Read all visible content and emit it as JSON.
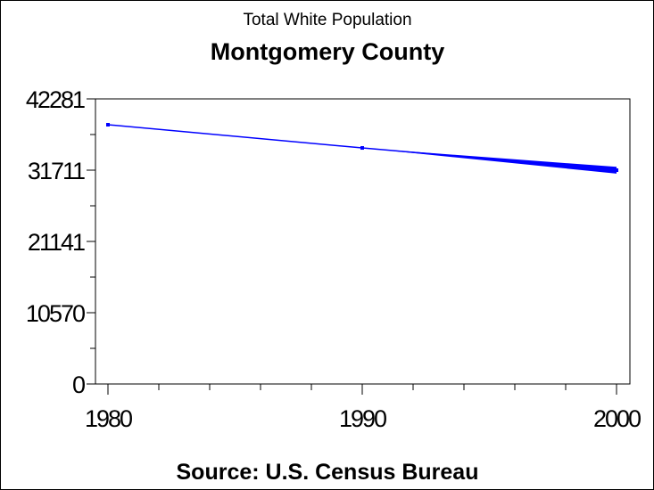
{
  "chart_data": {
    "type": "line",
    "title": "Montgomery County",
    "subtitle": "Total White Population",
    "footnote": "Source: U.S. Census Bureau",
    "xlabel": "",
    "ylabel": "",
    "x": [
      1980,
      1990,
      2000
    ],
    "series": [
      {
        "values": [
          38450,
          35010,
          31710
        ],
        "color": "#0000ff"
      }
    ],
    "end_spread_2000": [
      32200,
      31200
    ],
    "xlim": [
      1979.5,
      2000.5
    ],
    "ylim": [
      0,
      42281
    ],
    "x_ticks": [
      "1980",
      "1990",
      "2000"
    ],
    "x_minor_step": 2,
    "y_ticks": [
      "0",
      "10570",
      "21141",
      "31711",
      "42281"
    ],
    "y_tick_values": [
      0,
      10570,
      21141,
      31711,
      42281
    ],
    "grid": false,
    "legend": "none"
  }
}
